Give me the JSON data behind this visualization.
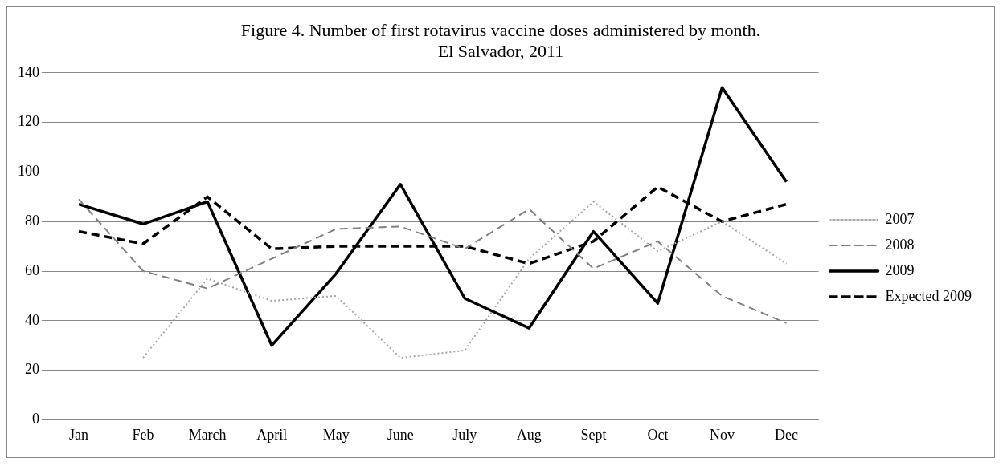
{
  "chart_data": {
    "type": "line",
    "title": "Figure 4. Number of first rotavirus vaccine doses administered by month.",
    "subtitle": "El Salvador, 2011",
    "categories": [
      "Jan",
      "Feb",
      "March",
      "April",
      "May",
      "June",
      "July",
      "Aug",
      "Sept",
      "Oct",
      "Nov",
      "Dec"
    ],
    "series": [
      {
        "name": "2007",
        "color": "#a6a6a6",
        "line_style": "dotted",
        "values": [
          null,
          25,
          57,
          48,
          50,
          25,
          28,
          65,
          88,
          68,
          80,
          63
        ]
      },
      {
        "name": "2008",
        "color": "#808080",
        "line_style": "dashed",
        "values": [
          89,
          60,
          53,
          65,
          77,
          78,
          69,
          85,
          61,
          72,
          50,
          39
        ]
      },
      {
        "name": "2009",
        "color": "#000000",
        "line_style": "solid",
        "values": [
          87,
          79,
          88,
          30,
          59,
          95,
          49,
          37,
          76,
          47,
          134,
          96
        ]
      },
      {
        "name": "Expected 2009",
        "color": "#000000",
        "line_style": "dashed",
        "values": [
          76,
          71,
          90,
          69,
          70,
          70,
          70,
          63,
          72,
          94,
          80,
          87
        ]
      }
    ],
    "ylim": [
      0,
      140
    ],
    "yticks": [
      0,
      20,
      40,
      60,
      80,
      100,
      120,
      140
    ],
    "grid": "y",
    "legend": "right",
    "marker": "none"
  }
}
